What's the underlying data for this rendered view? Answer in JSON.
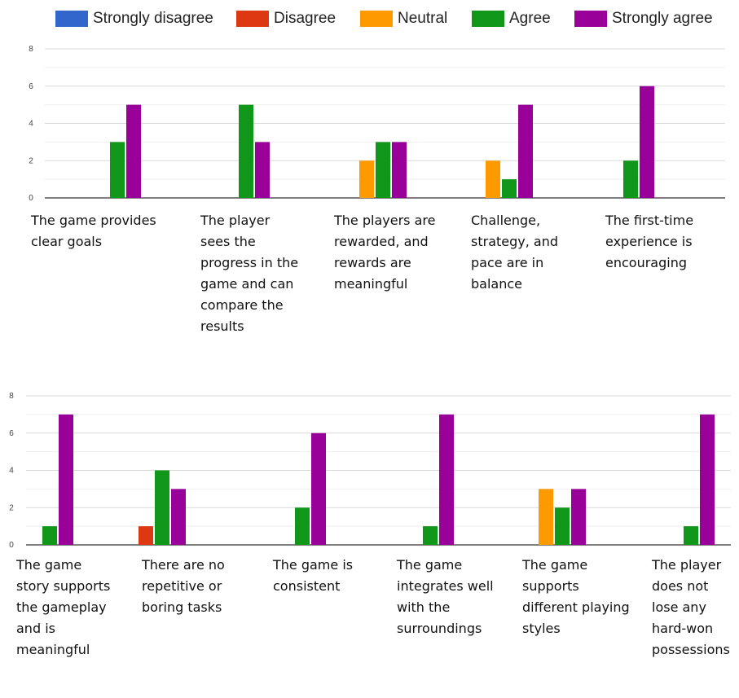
{
  "legend": [
    {
      "label": "Strongly disagree",
      "color": "#3366cc"
    },
    {
      "label": "Disagree",
      "color": "#dc3912"
    },
    {
      "label": "Neutral",
      "color": "#ff9900"
    },
    {
      "label": "Agree",
      "color": "#109618"
    },
    {
      "label": "Strongly agree",
      "color": "#990099"
    }
  ],
  "chart_data": [
    {
      "type": "bar",
      "ylim": [
        0,
        8
      ],
      "yticks": [
        "0",
        "2",
        "4",
        "6",
        "8"
      ],
      "grid": true,
      "legend_position": "top",
      "categories": [
        {
          "label_lines": [
            "The game provides",
            "clear goals"
          ]
        },
        {
          "label_lines": [
            "The player",
            "sees the",
            "progress in the",
            "game and can",
            "compare the",
            "results"
          ]
        },
        {
          "label_lines": [
            "The players are",
            "rewarded, and",
            "rewards are",
            "meaningful"
          ]
        },
        {
          "label_lines": [
            "Challenge,",
            "strategy, and",
            "pace are in",
            "balance"
          ]
        },
        {
          "label_lines": [
            "The first-time",
            "experience is",
            "encouraging"
          ]
        }
      ],
      "series": [
        {
          "name": "Strongly disagree",
          "values": [
            0,
            0,
            0,
            0,
            0
          ]
        },
        {
          "name": "Disagree",
          "values": [
            0,
            0,
            0,
            0,
            0
          ]
        },
        {
          "name": "Neutral",
          "values": [
            0,
            0,
            2,
            2,
            0
          ]
        },
        {
          "name": "Agree",
          "values": [
            3,
            5,
            3,
            1,
            2
          ]
        },
        {
          "name": "Strongly agree",
          "values": [
            5,
            3,
            3,
            5,
            6
          ]
        }
      ]
    },
    {
      "type": "bar",
      "ylim": [
        0,
        8
      ],
      "yticks": [
        "0",
        "2",
        "4",
        "6",
        "8"
      ],
      "grid": true,
      "legend_position": "top",
      "categories": [
        {
          "label_lines": [
            "The game",
            "story supports",
            "the gameplay",
            "and is",
            "meaningful"
          ]
        },
        {
          "label_lines": [
            "There are no",
            "repetitive or",
            "boring tasks"
          ]
        },
        {
          "label_lines": [
            "The game is",
            "consistent"
          ]
        },
        {
          "label_lines": [
            "The game",
            "integrates well",
            "with the",
            "surroundings"
          ]
        },
        {
          "label_lines": [
            "The game",
            "supports",
            "different playing",
            "styles"
          ]
        },
        {
          "label_lines": [
            "The player",
            "does not",
            "lose any",
            "hard-won",
            "possessions"
          ]
        }
      ],
      "series": [
        {
          "name": "Strongly disagree",
          "values": [
            0,
            0,
            0,
            0,
            0,
            0
          ]
        },
        {
          "name": "Disagree",
          "values": [
            0,
            1,
            0,
            0,
            0,
            0
          ]
        },
        {
          "name": "Neutral",
          "values": [
            0,
            0,
            0,
            0,
            3,
            0
          ]
        },
        {
          "name": "Agree",
          "values": [
            1,
            4,
            2,
            1,
            2,
            1
          ]
        },
        {
          "name": "Strongly agree",
          "values": [
            7,
            3,
            6,
            7,
            3,
            7
          ]
        }
      ]
    }
  ]
}
